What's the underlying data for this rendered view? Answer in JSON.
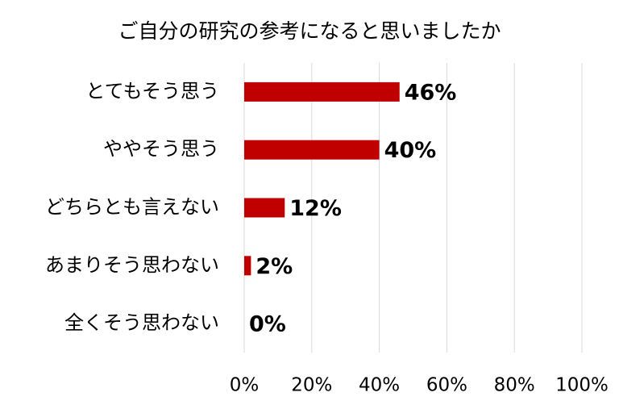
{
  "chart_data": {
    "type": "bar",
    "orientation": "horizontal",
    "title": "ご自分の研究の参考になると思いましたか",
    "categories": [
      "とてもそう思う",
      "ややそう思う",
      "どちらとも言えない",
      "あまりそう思わない",
      "全くそう思わない"
    ],
    "values": [
      46,
      40,
      12,
      2,
      0
    ],
    "value_labels": [
      "46%",
      "40%",
      "12%",
      "2%",
      "0%"
    ],
    "color": "#c00000",
    "xlim": [
      0,
      100
    ],
    "xticks": [
      {
        "value": 0,
        "label": "0%"
      },
      {
        "value": 20,
        "label": "20%"
      },
      {
        "value": 40,
        "label": "40%"
      },
      {
        "value": 60,
        "label": "60%"
      },
      {
        "value": 80,
        "label": "80%"
      },
      {
        "value": 100,
        "label": "100%"
      }
    ],
    "grid": true
  }
}
